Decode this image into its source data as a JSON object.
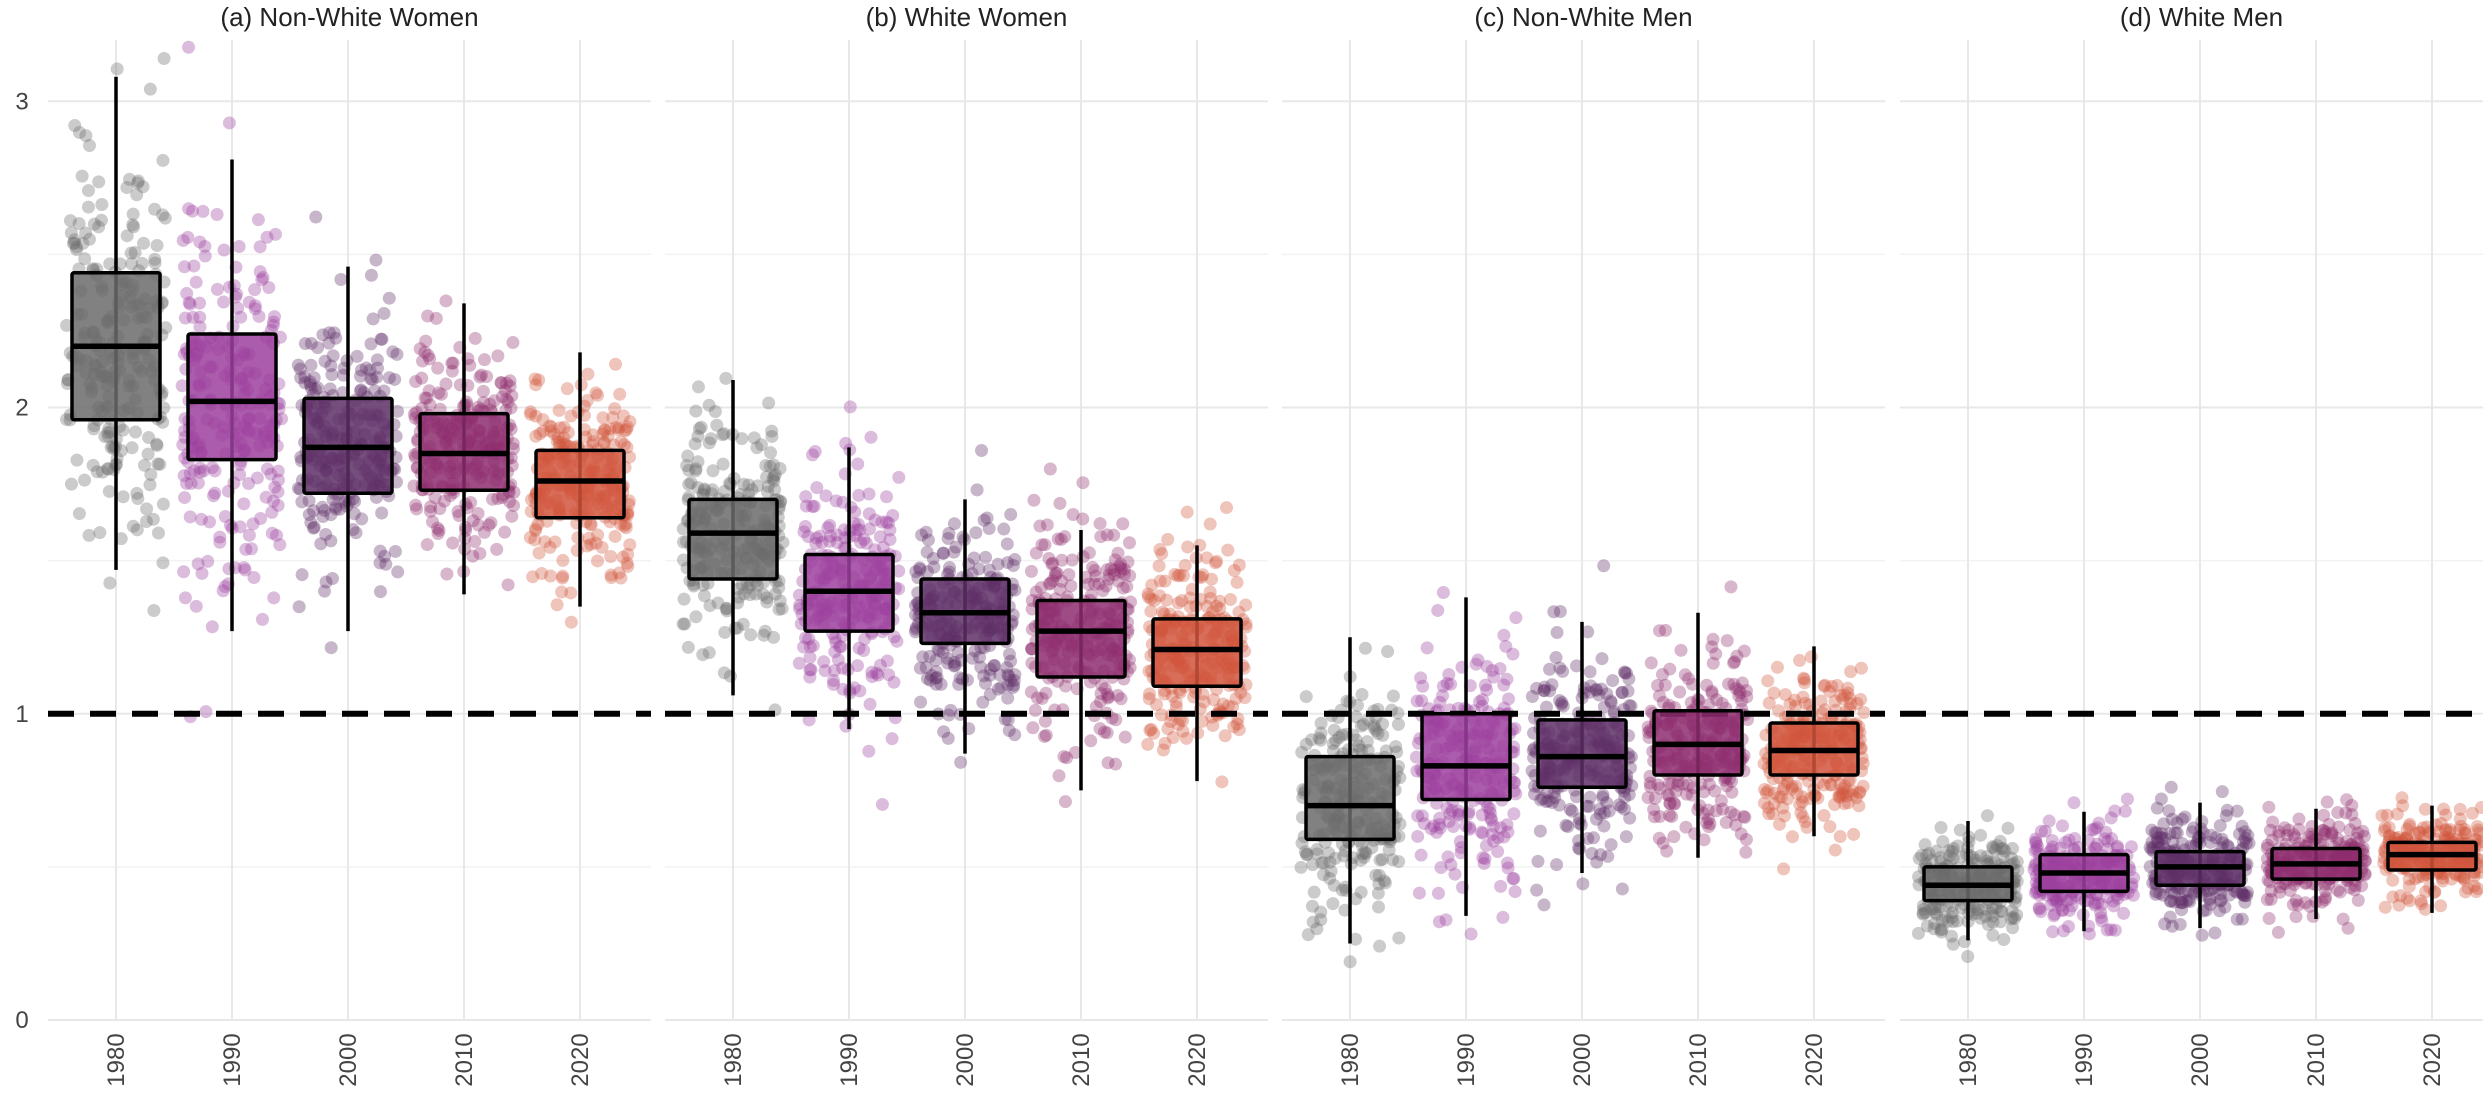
{
  "chart_data": {
    "type": "boxplot",
    "title": "",
    "xlabel": "",
    "ylabel": "",
    "ylim": [
      0,
      3.2
    ],
    "y_ticks": [
      "0",
      "1",
      "2",
      "3"
    ],
    "categories": [
      "1980",
      "1990",
      "2000",
      "2010",
      "2020"
    ],
    "reference_line": 1,
    "grid": true,
    "jittered_points": true,
    "colors": {
      "1980": "#6b6b6b",
      "1990": "#9c3f9e",
      "2000": "#5e2f66",
      "2010": "#8e2d6e",
      "2020": "#d1553c"
    },
    "facets": [
      {
        "title": "(a) Non-White Women",
        "boxes": [
          {
            "category": "1980",
            "whisker_low": 1.47,
            "q1": 1.96,
            "median": 2.2,
            "q3": 2.44,
            "whisker_high": 3.08
          },
          {
            "category": "1990",
            "whisker_low": 1.27,
            "q1": 1.83,
            "median": 2.02,
            "q3": 2.24,
            "whisker_high": 2.81
          },
          {
            "category": "2000",
            "whisker_low": 1.27,
            "q1": 1.72,
            "median": 1.87,
            "q3": 2.03,
            "whisker_high": 2.46
          },
          {
            "category": "2010",
            "whisker_low": 1.39,
            "q1": 1.73,
            "median": 1.85,
            "q3": 1.98,
            "whisker_high": 2.34
          },
          {
            "category": "2020",
            "whisker_low": 1.35,
            "q1": 1.64,
            "median": 1.76,
            "q3": 1.86,
            "whisker_high": 2.18
          }
        ]
      },
      {
        "title": "(b) White Women",
        "boxes": [
          {
            "category": "1980",
            "whisker_low": 1.06,
            "q1": 1.44,
            "median": 1.59,
            "q3": 1.7,
            "whisker_high": 2.09
          },
          {
            "category": "1990",
            "whisker_low": 0.95,
            "q1": 1.27,
            "median": 1.4,
            "q3": 1.52,
            "whisker_high": 1.87
          },
          {
            "category": "2000",
            "whisker_low": 0.87,
            "q1": 1.23,
            "median": 1.33,
            "q3": 1.44,
            "whisker_high": 1.7
          },
          {
            "category": "2010",
            "whisker_low": 0.75,
            "q1": 1.12,
            "median": 1.27,
            "q3": 1.37,
            "whisker_high": 1.6
          },
          {
            "category": "2020",
            "whisker_low": 0.78,
            "q1": 1.09,
            "median": 1.21,
            "q3": 1.31,
            "whisker_high": 1.55
          }
        ]
      },
      {
        "title": "(c) Non-White Men",
        "boxes": [
          {
            "category": "1980",
            "whisker_low": 0.25,
            "q1": 0.59,
            "median": 0.7,
            "q3": 0.86,
            "whisker_high": 1.25
          },
          {
            "category": "1990",
            "whisker_low": 0.34,
            "q1": 0.72,
            "median": 0.83,
            "q3": 1.0,
            "whisker_high": 1.38
          },
          {
            "category": "2000",
            "whisker_low": 0.48,
            "q1": 0.76,
            "median": 0.86,
            "q3": 0.98,
            "whisker_high": 1.3
          },
          {
            "category": "2010",
            "whisker_low": 0.53,
            "q1": 0.8,
            "median": 0.9,
            "q3": 1.01,
            "whisker_high": 1.33
          },
          {
            "category": "2020",
            "whisker_low": 0.6,
            "q1": 0.8,
            "median": 0.88,
            "q3": 0.97,
            "whisker_high": 1.22
          }
        ]
      },
      {
        "title": "(d) White Men",
        "boxes": [
          {
            "category": "1980",
            "whisker_low": 0.26,
            "q1": 0.39,
            "median": 0.44,
            "q3": 0.5,
            "whisker_high": 0.65
          },
          {
            "category": "1990",
            "whisker_low": 0.29,
            "q1": 0.42,
            "median": 0.48,
            "q3": 0.54,
            "whisker_high": 0.68
          },
          {
            "category": "2000",
            "whisker_low": 0.3,
            "q1": 0.44,
            "median": 0.5,
            "q3": 0.55,
            "whisker_high": 0.71
          },
          {
            "category": "2010",
            "whisker_low": 0.33,
            "q1": 0.46,
            "median": 0.51,
            "q3": 0.56,
            "whisker_high": 0.69
          },
          {
            "category": "2020",
            "whisker_low": 0.35,
            "q1": 0.49,
            "median": 0.54,
            "q3": 0.58,
            "whisker_high": 0.7
          }
        ]
      }
    ]
  }
}
